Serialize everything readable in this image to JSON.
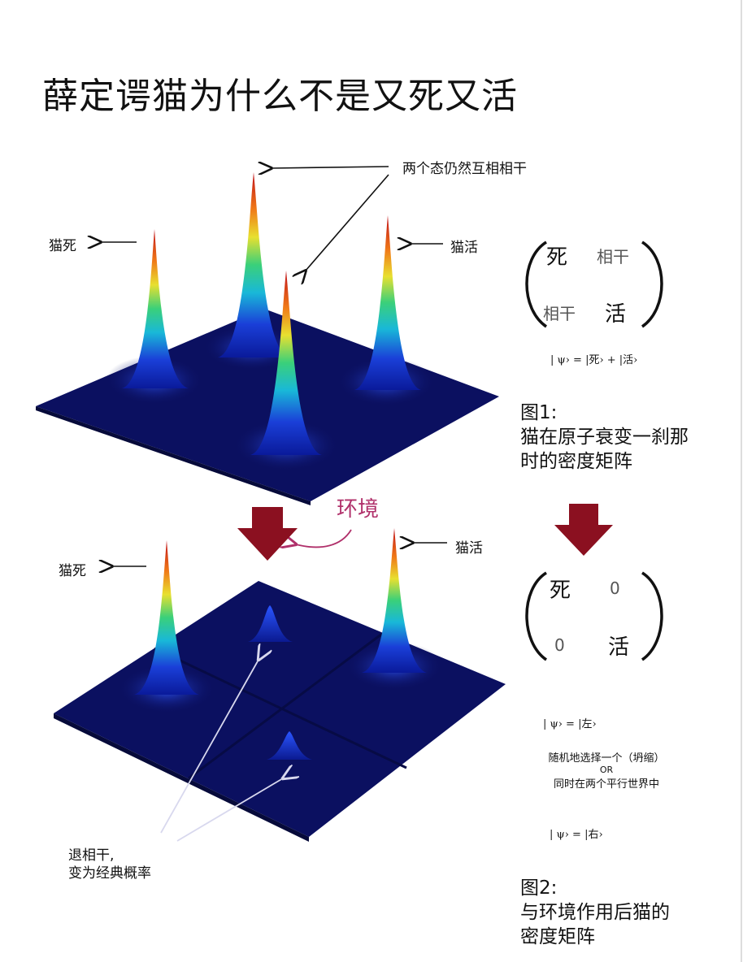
{
  "title": "薛定谔猫为什么不是又死又活",
  "colors": {
    "plane": "#0b1060",
    "arrow_big": "#8b1020",
    "env": "#b0306a",
    "peak_top": "#c0101a",
    "peak_base": "#0a2fc0"
  },
  "top": {
    "coherence_note": "两个态仍然互相相干",
    "cat_dead": "猫死",
    "cat_alive": "猫活",
    "matrix": {
      "a11": "死",
      "a12": "相干",
      "a21": "相干",
      "a22": "活"
    },
    "psi": "| ψ› = |死› + |活›",
    "caption_line1": "图1:",
    "caption_line2": "猫在原子衰变一刹那",
    "caption_line3": "时的密度矩阵"
  },
  "environment": "环境",
  "bottom": {
    "cat_dead": "猫死",
    "cat_alive": "猫活",
    "matrix": {
      "a11": "死",
      "a12": "0",
      "a21": "0",
      "a22": "活"
    },
    "psi_left": "| ψ› = |左›",
    "choice_line1": "随机地选择一个（坍缩）",
    "choice_or": "OR",
    "choice_line2": "同时在两个平行世界中",
    "psi_right": "| ψ› = |右›",
    "decoherence_line1": "退相干,",
    "decoherence_line2": "变为经典概率",
    "caption_line1": "图2:",
    "caption_line2": "与环境作用后猫的",
    "caption_line3": "密度矩阵"
  }
}
